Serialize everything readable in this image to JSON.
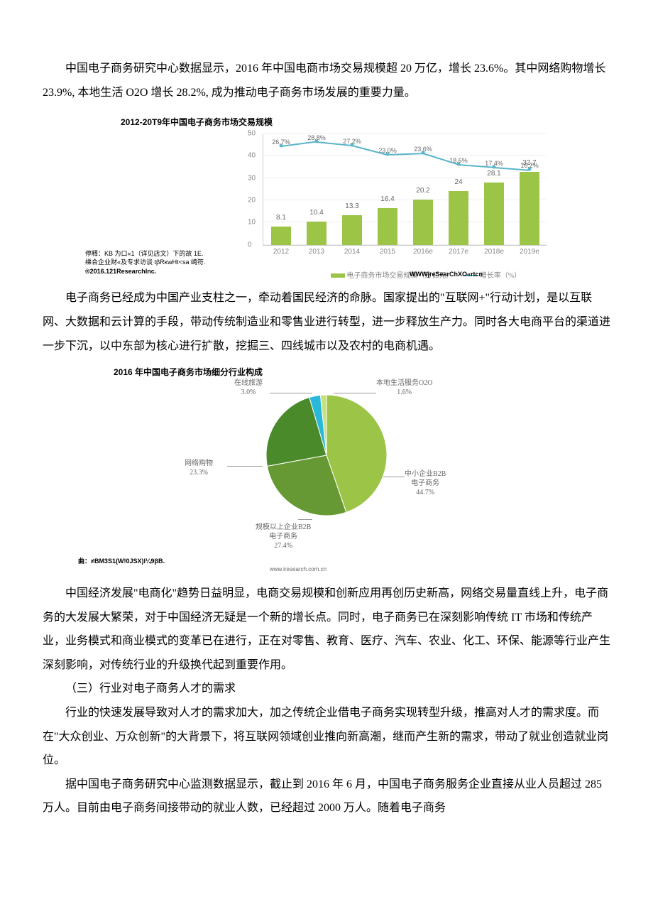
{
  "paragraphs": {
    "p1": "中国电子商务研究中心数据显示，2016 年中国电商市场交易规模超 20 万亿，增长 23.6%。其中网络购物增长 23.9%, 本地生活 O2O 增长 28.2%, 成为推动电子商务市场发展的重要力量。",
    "p2": "电子商务已经成为中国产业支柱之一，牵动着国民经济的命脉。国家提出的\"互联网+\"行动计划，是以互联网、大数据和云计算的手段，带动传统制造业和零售业进行转型，进一步释放生产力。同时各大电商平台的渠道进一步下沉，以中东部为核心进行扩散，挖掘三、四线城市以及农村的电商机遇。",
    "p3": "中国经济发展\"电商化\"趋势日益明显，电商交易规模和创新应用再创历史新高，网络交易量直线上升，电子商务的大发展大繁荣，对于中国经济无疑是一个新的增长点。同时，电子商务已在深刻影响传统 IT 市场和传统产业，业务模式和商业模式的变革已在进行，正在对零售、教育、医疗、汽车、农业、化工、环保、能源等行业产生深刻影响，对传统行业的升级换代起到重要作用。",
    "section3_title": "（三）行业对电子商务人才的需求",
    "p4": "行业的快速发展导致对人才的需求加大，加之传统企业借电子商务实现转型升级，推高对人才的需求度。而在\"大众创业、万众创新\"的大背景下，将互联网领域创业推向新高潮，继而产生新的需求，带动了就业创造就业岗位。",
    "p5": "据中国电子商务研究中心监测数据显示，截止到 2016 年 6 月，中国电子商务服务企业直接从业人员超过 285 万人。目前由电子商务间接带动的就业人数，已经超过 2000 万人。随着电子商务"
  },
  "bar_chart": {
    "title": "2012-20T9年中国电子商务市场交易规模",
    "categories": [
      "2012",
      "2013",
      "2014",
      "2015",
      "2016e",
      "2017e",
      "2018e",
      "2019e"
    ],
    "bar_values": [
      8.1,
      10.4,
      13.3,
      16.4,
      20.2,
      24.0,
      28.1,
      32.7
    ],
    "growth_values": [
      "26.7%",
      "28.8%",
      "27.2%",
      "23.0%",
      "23.6%",
      "18.6%",
      "17.4%",
      "16.2%"
    ],
    "growth_y": [
      26.7,
      28.8,
      27.2,
      23.0,
      23.6,
      18.6,
      17.4,
      16.2
    ],
    "bar_color": "#9cc548",
    "line_color": "#5bb5c9",
    "ylim": [
      0,
      50
    ],
    "yticks": [
      0,
      10,
      20,
      30,
      40,
      50
    ],
    "legend_bar": "电子商务市场交易规模（万亿元）",
    "legend_line": "增长率（%）",
    "footnote1": "停释：KB 为口«1（详见店文）下的故 1E.",
    "footnote2": "绨合企业财«及专求访谈 tβRκwHt<sa 崎符.",
    "footnote3": "®2016.121ResearchInc.",
    "source_right": "WWWjreSearChXO«rtcn"
  },
  "pie_chart": {
    "title": "2016 年中国电子商务市场细分行业构成",
    "slices": [
      {
        "label": "中小企业B2B\n电子商务",
        "pct": "44.7%",
        "value": 44.7,
        "color": "#9cc548"
      },
      {
        "label": "规模以上企业B2B\n电子商务",
        "pct": "27.4%",
        "value": 27.4,
        "color": "#669933"
      },
      {
        "label": "网络购物",
        "pct": "23.3%",
        "value": 23.3,
        "color": "#4a8a2a"
      },
      {
        "label": "在线旅游",
        "pct": "3.0%",
        "value": 3.0,
        "color": "#2ab8d8"
      },
      {
        "label": "本地生活服务O2O",
        "pct": "1.6%",
        "value": 1.6,
        "color": "#c8e080"
      }
    ],
    "footnote": "曲：≠BM3S1(W!0JSX)l¼9βB.",
    "source": "www.iresearch.com.cn"
  }
}
